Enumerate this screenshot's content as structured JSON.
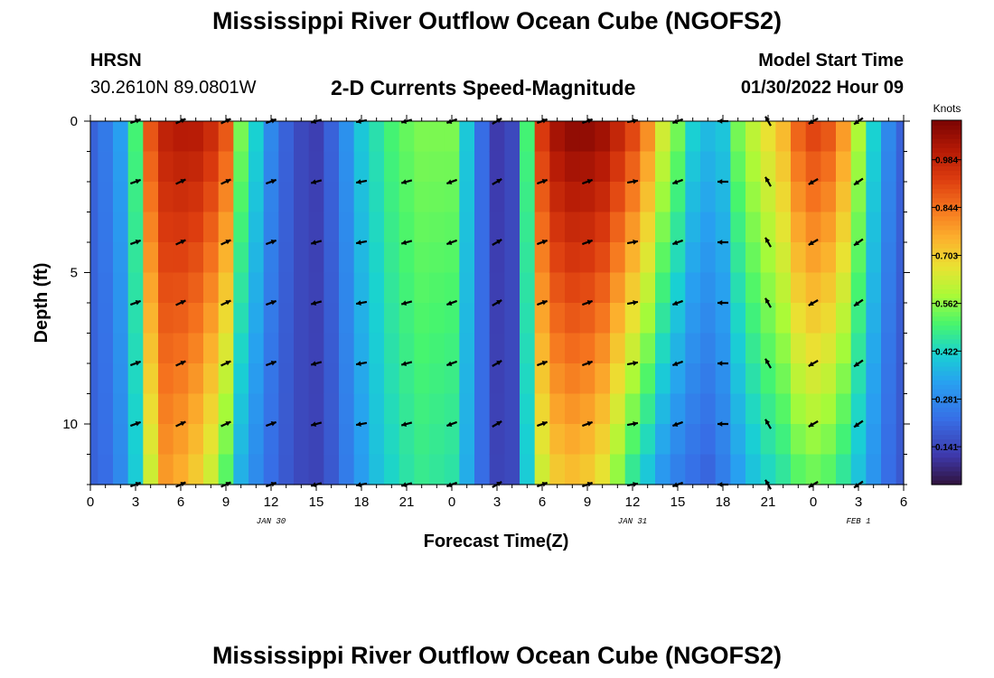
{
  "page": {
    "title": "Mississippi River Outflow Ocean Cube (NGOFS2)",
    "title_repeat": "Mississippi River Outflow Ocean Cube (NGOFS2)",
    "station_id": "HRSN",
    "location": "30.2610N  89.0801W",
    "model_start_label": "Model Start Time",
    "model_start_value": "01/30/2022 Hour 09"
  },
  "chart_data": {
    "type": "heatmap",
    "title": "2-D Currents Speed-Magnitude",
    "xlabel": "Forecast Time(Z)",
    "ylabel": "Depth (ft)",
    "xlim": [
      0,
      54
    ],
    "ylim": [
      0,
      12
    ],
    "x_tick_values": [
      0,
      3,
      6,
      9,
      12,
      15,
      18,
      21,
      24,
      27,
      30,
      33,
      36,
      39,
      42,
      45,
      48,
      51,
      54
    ],
    "x_tick_labels": [
      "0",
      "3",
      "6",
      "9",
      "12",
      "15",
      "18",
      "21",
      "0",
      "3",
      "6",
      "9",
      "12",
      "15",
      "18",
      "21",
      "0",
      "3",
      "6"
    ],
    "y_tick_values": [
      0,
      5,
      10
    ],
    "y_tick_labels": [
      "0",
      "5",
      "10"
    ],
    "date_labels": [
      {
        "x": 12,
        "text": "JAN 30"
      },
      {
        "x": 36,
        "text": "JAN 31"
      },
      {
        "x": 51,
        "text": "FEB 1"
      }
    ],
    "colorbar": {
      "unit": "Knots",
      "min": 0.03,
      "max": 1.1,
      "tick_values": [
        0.141,
        0.281,
        0.422,
        0.562,
        0.703,
        0.844,
        0.984
      ],
      "tick_labels": [
        "0.141",
        "0.281",
        "0.422",
        "0.562",
        "0.703",
        "0.844",
        "0.984"
      ]
    },
    "speed_profile": {
      "hours": [
        0,
        1,
        2,
        3,
        4,
        5,
        6,
        7,
        8,
        9,
        10,
        11,
        12,
        13,
        14,
        15,
        16,
        17,
        18,
        19,
        20,
        21,
        22,
        23,
        24,
        25,
        26,
        27,
        28,
        29,
        30,
        31,
        32,
        33,
        34,
        35,
        36,
        37,
        38,
        39,
        40,
        41,
        42,
        43,
        44,
        45,
        46,
        47,
        48,
        49,
        50,
        51,
        52,
        53,
        54
      ],
      "surface": [
        0.2,
        0.25,
        0.33,
        0.5,
        0.9,
        1.0,
        1.02,
        1.02,
        0.98,
        0.9,
        0.55,
        0.42,
        0.28,
        0.2,
        0.15,
        0.13,
        0.2,
        0.3,
        0.4,
        0.45,
        0.5,
        0.53,
        0.55,
        0.55,
        0.55,
        0.4,
        0.22,
        0.12,
        0.15,
        0.5,
        0.95,
        1.05,
        1.08,
        1.08,
        1.06,
        1.0,
        0.93,
        0.82,
        0.65,
        0.55,
        0.42,
        0.38,
        0.4,
        0.55,
        0.62,
        0.68,
        0.75,
        0.88,
        0.93,
        0.9,
        0.8,
        0.6,
        0.42,
        0.28,
        0.2
      ],
      "bottom": [
        0.2,
        0.22,
        0.28,
        0.4,
        0.62,
        0.78,
        0.75,
        0.7,
        0.62,
        0.5,
        0.35,
        0.28,
        0.22,
        0.18,
        0.15,
        0.14,
        0.18,
        0.25,
        0.32,
        0.38,
        0.42,
        0.45,
        0.47,
        0.46,
        0.45,
        0.35,
        0.22,
        0.14,
        0.15,
        0.4,
        0.62,
        0.7,
        0.72,
        0.7,
        0.65,
        0.55,
        0.45,
        0.38,
        0.3,
        0.25,
        0.22,
        0.2,
        0.25,
        0.32,
        0.38,
        0.42,
        0.45,
        0.5,
        0.52,
        0.5,
        0.45,
        0.38,
        0.3,
        0.22,
        0.18
      ]
    },
    "vectors": {
      "depths": [
        0,
        2,
        4,
        6,
        8,
        10,
        12
      ],
      "hours": [
        3,
        6,
        9,
        12,
        15,
        18,
        21,
        24,
        27,
        30,
        33,
        36,
        39,
        42,
        45,
        48,
        51
      ],
      "directions_deg": [
        20,
        25,
        25,
        20,
        195,
        190,
        195,
        200,
        30,
        20,
        20,
        10,
        200,
        180,
        120,
        210,
        215
      ]
    }
  }
}
